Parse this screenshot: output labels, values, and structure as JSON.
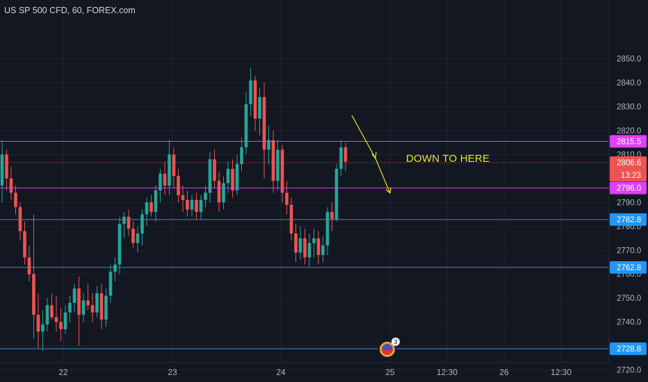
{
  "header": {
    "symbol_line": "US SP 500 CFD, 60, FOREX.com"
  },
  "annotation": {
    "text": "DOWN TO HERE"
  },
  "events_badge": {
    "count": "3",
    "icon": "us-flag-icon"
  },
  "colors": {
    "background": "#131722",
    "up": "#26a69a",
    "down": "#ef5350",
    "magenta": "#e040fb",
    "blue": "#2196f3",
    "arrow": "#e6e62a"
  },
  "chart_data": {
    "type": "candlestick",
    "title": "US SP 500 CFD, 60, FOREX.com",
    "ylim": [
      2715,
      2857
    ],
    "x_ticks": [
      "22",
      "23",
      "24",
      "25",
      "12:30",
      "26",
      "12:30"
    ],
    "y_ticks": [
      "2850.0",
      "2840.0",
      "2830.0",
      "2820.0",
      "2810.0",
      "2790.0",
      "2780.0",
      "2770.0",
      "2760.0",
      "2750.0",
      "2740.0",
      "2730.0",
      "2720.0"
    ],
    "ohlc": [
      [
        2797,
        2816,
        2790,
        2810
      ],
      [
        2810,
        2812,
        2795,
        2800
      ],
      [
        2800,
        2805,
        2791,
        2794
      ],
      [
        2794,
        2797,
        2785,
        2788
      ],
      [
        2788,
        2790,
        2774,
        2778
      ],
      [
        2778,
        2782,
        2764,
        2767
      ],
      [
        2767,
        2772,
        2757,
        2760
      ],
      [
        2760,
        2785,
        2733,
        2743
      ],
      [
        2743,
        2752,
        2729,
        2736
      ],
      [
        2736,
        2745,
        2728,
        2739
      ],
      [
        2739,
        2750,
        2736,
        2747
      ],
      [
        2747,
        2752,
        2741,
        2742
      ],
      [
        2742,
        2751,
        2736,
        2740
      ],
      [
        2740,
        2746,
        2732,
        2737
      ],
      [
        2737,
        2747,
        2735,
        2744
      ],
      [
        2744,
        2751,
        2740,
        2748
      ],
      [
        2748,
        2756,
        2744,
        2754
      ],
      [
        2754,
        2759,
        2730,
        2743
      ],
      [
        2743,
        2752,
        2740,
        2749
      ],
      [
        2749,
        2756,
        2745,
        2747
      ],
      [
        2747,
        2752,
        2740,
        2744
      ],
      [
        2744,
        2755,
        2742,
        2752
      ],
      [
        2752,
        2756,
        2737,
        2741
      ],
      [
        2741,
        2754,
        2738,
        2751
      ],
      [
        2751,
        2764,
        2748,
        2761
      ],
      [
        2761,
        2767,
        2757,
        2764
      ],
      [
        2764,
        2784,
        2760,
        2781
      ],
      [
        2781,
        2786,
        2775,
        2784
      ],
      [
        2784,
        2787,
        2776,
        2779
      ],
      [
        2779,
        2782,
        2771,
        2773
      ],
      [
        2773,
        2780,
        2769,
        2777
      ],
      [
        2777,
        2787,
        2772,
        2785
      ],
      [
        2785,
        2792,
        2780,
        2790
      ],
      [
        2790,
        2793,
        2784,
        2786
      ],
      [
        2786,
        2797,
        2782,
        2795
      ],
      [
        2795,
        2804,
        2790,
        2802
      ],
      [
        2802,
        2807,
        2793,
        2797
      ],
      [
        2797,
        2816,
        2793,
        2810
      ],
      [
        2810,
        2813,
        2796,
        2801
      ],
      [
        2801,
        2804,
        2790,
        2793
      ],
      [
        2793,
        2797,
        2786,
        2791
      ],
      [
        2791,
        2795,
        2784,
        2787
      ],
      [
        2787,
        2793,
        2784,
        2791
      ],
      [
        2791,
        2794,
        2783,
        2786
      ],
      [
        2786,
        2793,
        2783,
        2791
      ],
      [
        2791,
        2797,
        2788,
        2794
      ],
      [
        2794,
        2811,
        2790,
        2808
      ],
      [
        2808,
        2812,
        2796,
        2799
      ],
      [
        2799,
        2803,
        2786,
        2790
      ],
      [
        2790,
        2801,
        2787,
        2798
      ],
      [
        2798,
        2807,
        2794,
        2804
      ],
      [
        2804,
        2808,
        2792,
        2795
      ],
      [
        2795,
        2810,
        2793,
        2806
      ],
      [
        2806,
        2817,
        2803,
        2813
      ],
      [
        2813,
        2836,
        2810,
        2831
      ],
      [
        2831,
        2846,
        2826,
        2841
      ],
      [
        2841,
        2843,
        2820,
        2825
      ],
      [
        2825,
        2838,
        2818,
        2834
      ],
      [
        2834,
        2840,
        2800,
        2812
      ],
      [
        2812,
        2822,
        2806,
        2816
      ],
      [
        2816,
        2820,
        2794,
        2799
      ],
      [
        2799,
        2816,
        2795,
        2812
      ],
      [
        2812,
        2814,
        2790,
        2794
      ],
      [
        2794,
        2799,
        2785,
        2789
      ],
      [
        2789,
        2792,
        2774,
        2777
      ],
      [
        2777,
        2781,
        2765,
        2769
      ],
      [
        2769,
        2780,
        2766,
        2775
      ],
      [
        2775,
        2779,
        2764,
        2767
      ],
      [
        2767,
        2777,
        2763,
        2773
      ],
      [
        2773,
        2779,
        2767,
        2775
      ],
      [
        2775,
        2778,
        2764,
        2768
      ],
      [
        2768,
        2776,
        2765,
        2772
      ],
      [
        2772,
        2788,
        2768,
        2786
      ],
      [
        2786,
        2790,
        2778,
        2783
      ],
      [
        2783,
        2806,
        2782,
        2804
      ],
      [
        2804,
        2816,
        2801,
        2813
      ],
      [
        2813,
        2815,
        2803,
        2807
      ]
    ],
    "lines": [
      {
        "price": 2815.5,
        "color": "#e040fb",
        "label": "2815.5"
      },
      {
        "price": 2796.0,
        "color": "#e040fb",
        "label": "2796.0"
      },
      {
        "price": 2782.8,
        "color": "#2196f3",
        "label": "2782.8"
      },
      {
        "price": 2762.8,
        "color": "#2196f3",
        "label": "2762.8"
      },
      {
        "price": 2728.8,
        "color": "#2196f3",
        "label": "2728.8"
      }
    ],
    "last_price": {
      "price": 2806.6,
      "label": "2806.6",
      "countdown": "13:23",
      "color": "#ef5350"
    }
  }
}
